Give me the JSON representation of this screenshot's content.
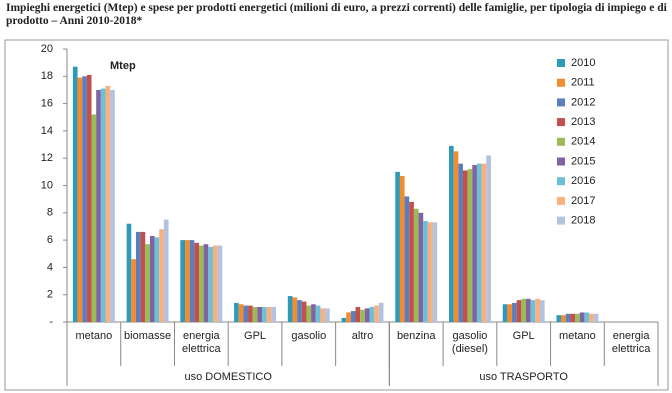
{
  "chart_data": {
    "type": "bar",
    "title": "Impieghi energetici (Mtep) e spese per prodotti energetici (milioni di euro, a prezzi correnti) delle famiglie, per tipologia di impiego e di prodotto – Anni 2010-2018*",
    "annotation": "Mtep",
    "groups": [
      {
        "name": "uso DOMESTICO",
        "categories": [
          "metano",
          "biomasse",
          "energia elettrica",
          "GPL",
          "gasolio",
          "altro"
        ]
      },
      {
        "name": "uso TRASPORTO",
        "categories": [
          "benzina",
          "gasolio (diesel)",
          "GPL",
          "metano",
          "energia elettrica"
        ]
      }
    ],
    "series": [
      {
        "name": "2010",
        "color": "#2e9ab8",
        "values": [
          18.7,
          7.2,
          6.0,
          1.4,
          1.9,
          0.3,
          11.0,
          12.9,
          1.3,
          0.5,
          0
        ]
      },
      {
        "name": "2011",
        "color": "#f38b2f",
        "values": [
          17.9,
          4.6,
          6.0,
          1.3,
          1.8,
          0.7,
          10.7,
          12.5,
          1.3,
          0.5,
          0
        ]
      },
      {
        "name": "2012",
        "color": "#5b7fbd",
        "values": [
          18.0,
          6.6,
          6.0,
          1.2,
          1.6,
          0.8,
          9.2,
          11.6,
          1.4,
          0.6,
          0
        ]
      },
      {
        "name": "2013",
        "color": "#c2504d",
        "values": [
          18.1,
          6.6,
          5.8,
          1.2,
          1.5,
          1.1,
          8.8,
          11.1,
          1.6,
          0.6,
          0
        ]
      },
      {
        "name": "2014",
        "color": "#9bbb59",
        "values": [
          15.2,
          5.7,
          5.6,
          1.1,
          1.2,
          0.9,
          8.3,
          11.2,
          1.7,
          0.6,
          0
        ]
      },
      {
        "name": "2015",
        "color": "#8064a2",
        "values": [
          17.0,
          6.3,
          5.7,
          1.1,
          1.3,
          1.0,
          8.0,
          11.5,
          1.7,
          0.7,
          0
        ]
      },
      {
        "name": "2016",
        "color": "#6cc0d8",
        "values": [
          17.1,
          6.2,
          5.5,
          1.1,
          1.2,
          1.1,
          7.4,
          11.6,
          1.6,
          0.7,
          0
        ]
      },
      {
        "name": "2017",
        "color": "#f7b07e",
        "values": [
          17.3,
          6.8,
          5.6,
          1.1,
          1.0,
          1.2,
          7.3,
          11.6,
          1.7,
          0.6,
          0
        ]
      },
      {
        "name": "2018",
        "color": "#b4c2e0",
        "values": [
          17.0,
          7.5,
          5.6,
          1.1,
          1.0,
          1.4,
          7.3,
          12.2,
          1.6,
          0.6,
          0
        ]
      }
    ],
    "ylim": [
      0,
      20
    ],
    "yticks": [
      {
        "value": 0,
        "label": "-"
      },
      2,
      4,
      6,
      8,
      10,
      12,
      14,
      16,
      18,
      20
    ],
    "grid": false,
    "legend": "upper right"
  }
}
